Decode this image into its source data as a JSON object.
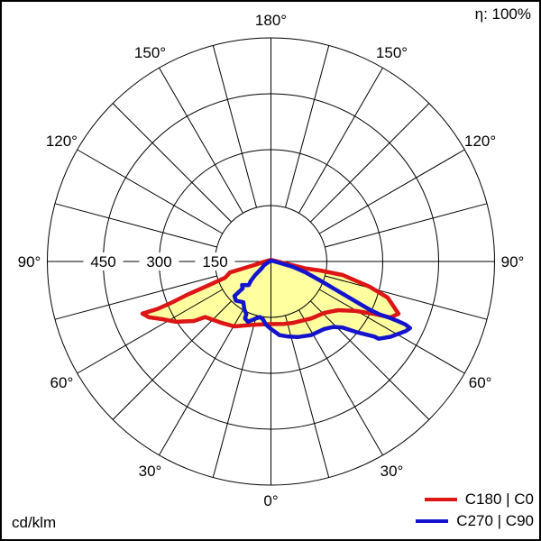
{
  "figure": {
    "efficiency_label": "η: 100%",
    "unit_label": "cd/klm"
  },
  "legend": [
    {
      "label": "C180 | C0",
      "color": "#dd1515"
    },
    {
      "label": "C270 | C90",
      "color": "#1414cc"
    }
  ],
  "chart_data": {
    "type": "line",
    "projection": "polar-photometric",
    "angle_convention": "0 deg at bottom (nadir), 180 deg at top, angles mirrored left/right; radius = luminous intensity in cd/klm",
    "rings_cd_per_klm": [
      150,
      300,
      450,
      600
    ],
    "labeled_rings": [
      450,
      300,
      150
    ],
    "radial_tick_labels": [
      "450",
      "300",
      "150"
    ],
    "angle_tick_labels": [
      "180°",
      "150°",
      "120°",
      "90°",
      "60°",
      "30°",
      "0°"
    ],
    "angle_tick_step_deg": 30,
    "spoke_step_deg": 15,
    "grid_on": true,
    "grid_color": "#000000",
    "fill_color": "#ffffa0",
    "legend_position": "bottom-right",
    "series": [
      {
        "name": "C180 | C0",
        "color": "#dd1515",
        "points_gamma_deg_value": [
          [
            180,
            4
          ],
          [
            -100,
            10
          ],
          [
            -84,
            25
          ],
          [
            -79,
            38
          ],
          [
            -76,
            76
          ],
          [
            -75,
            114
          ],
          [
            -70.5,
            130
          ],
          [
            -69,
            183
          ],
          [
            -68.4,
            236
          ],
          [
            -67.5,
            290
          ],
          [
            -67.3,
            329
          ],
          [
            -67.9,
            372
          ],
          [
            -65.4,
            360
          ],
          [
            -62,
            330
          ],
          [
            -57.6,
            302
          ],
          [
            -52.3,
            261
          ],
          [
            -49.8,
            231
          ],
          [
            -39.2,
            212
          ],
          [
            -29.4,
            200
          ],
          [
            -16.3,
            177
          ],
          [
            0,
            168
          ],
          [
            11.9,
            171
          ],
          [
            19.8,
            175
          ],
          [
            35.2,
            187
          ],
          [
            46.2,
            199
          ],
          [
            54.1,
            223
          ],
          [
            59.8,
            264
          ],
          [
            63.1,
            311
          ],
          [
            64.9,
            354
          ],
          [
            67.7,
            370
          ],
          [
            72.8,
            328
          ],
          [
            75.7,
            273
          ],
          [
            79.3,
            196
          ],
          [
            79.6,
            134
          ],
          [
            78.6,
            97
          ],
          [
            81.3,
            48
          ],
          [
            87,
            23
          ],
          [
            110,
            8
          ]
        ]
      },
      {
        "name": "C270 | C90",
        "color": "#1414cc",
        "points_gamma_deg_value": [
          [
            180,
            3
          ],
          [
            -62,
            21
          ],
          [
            -53,
            32
          ],
          [
            -49.5,
            55
          ],
          [
            -46.2,
            74
          ],
          [
            -43.3,
            87
          ],
          [
            -50.9,
            100
          ],
          [
            -46.4,
            105
          ],
          [
            -46.6,
            135
          ],
          [
            -41.9,
            141
          ],
          [
            -34.1,
            132
          ],
          [
            -29,
            147
          ],
          [
            -25,
            156
          ],
          [
            -24.5,
            168
          ],
          [
            -20.9,
            173
          ],
          [
            -15.2,
            159
          ],
          [
            -11.2,
            152
          ],
          [
            -7.8,
            157
          ],
          [
            -4.5,
            170
          ],
          [
            0,
            181
          ],
          [
            6.6,
            199
          ],
          [
            13.2,
            207
          ],
          [
            19.4,
            215
          ],
          [
            28.6,
            225
          ],
          [
            38.4,
            231
          ],
          [
            43.7,
            243
          ],
          [
            47.3,
            261
          ],
          [
            50.4,
            297
          ],
          [
            54,
            343
          ],
          [
            54.4,
            356
          ],
          [
            57.8,
            379
          ],
          [
            62.7,
            407
          ],
          [
            64.4,
            414
          ],
          [
            64.9,
            399
          ],
          [
            64.8,
            373
          ],
          [
            64.5,
            347
          ],
          [
            64,
            321
          ],
          [
            64,
            295
          ],
          [
            65,
            239
          ],
          [
            66.7,
            183
          ],
          [
            68.9,
            141
          ],
          [
            72.2,
            100
          ],
          [
            76.2,
            61
          ],
          [
            81,
            23
          ]
        ]
      }
    ]
  }
}
